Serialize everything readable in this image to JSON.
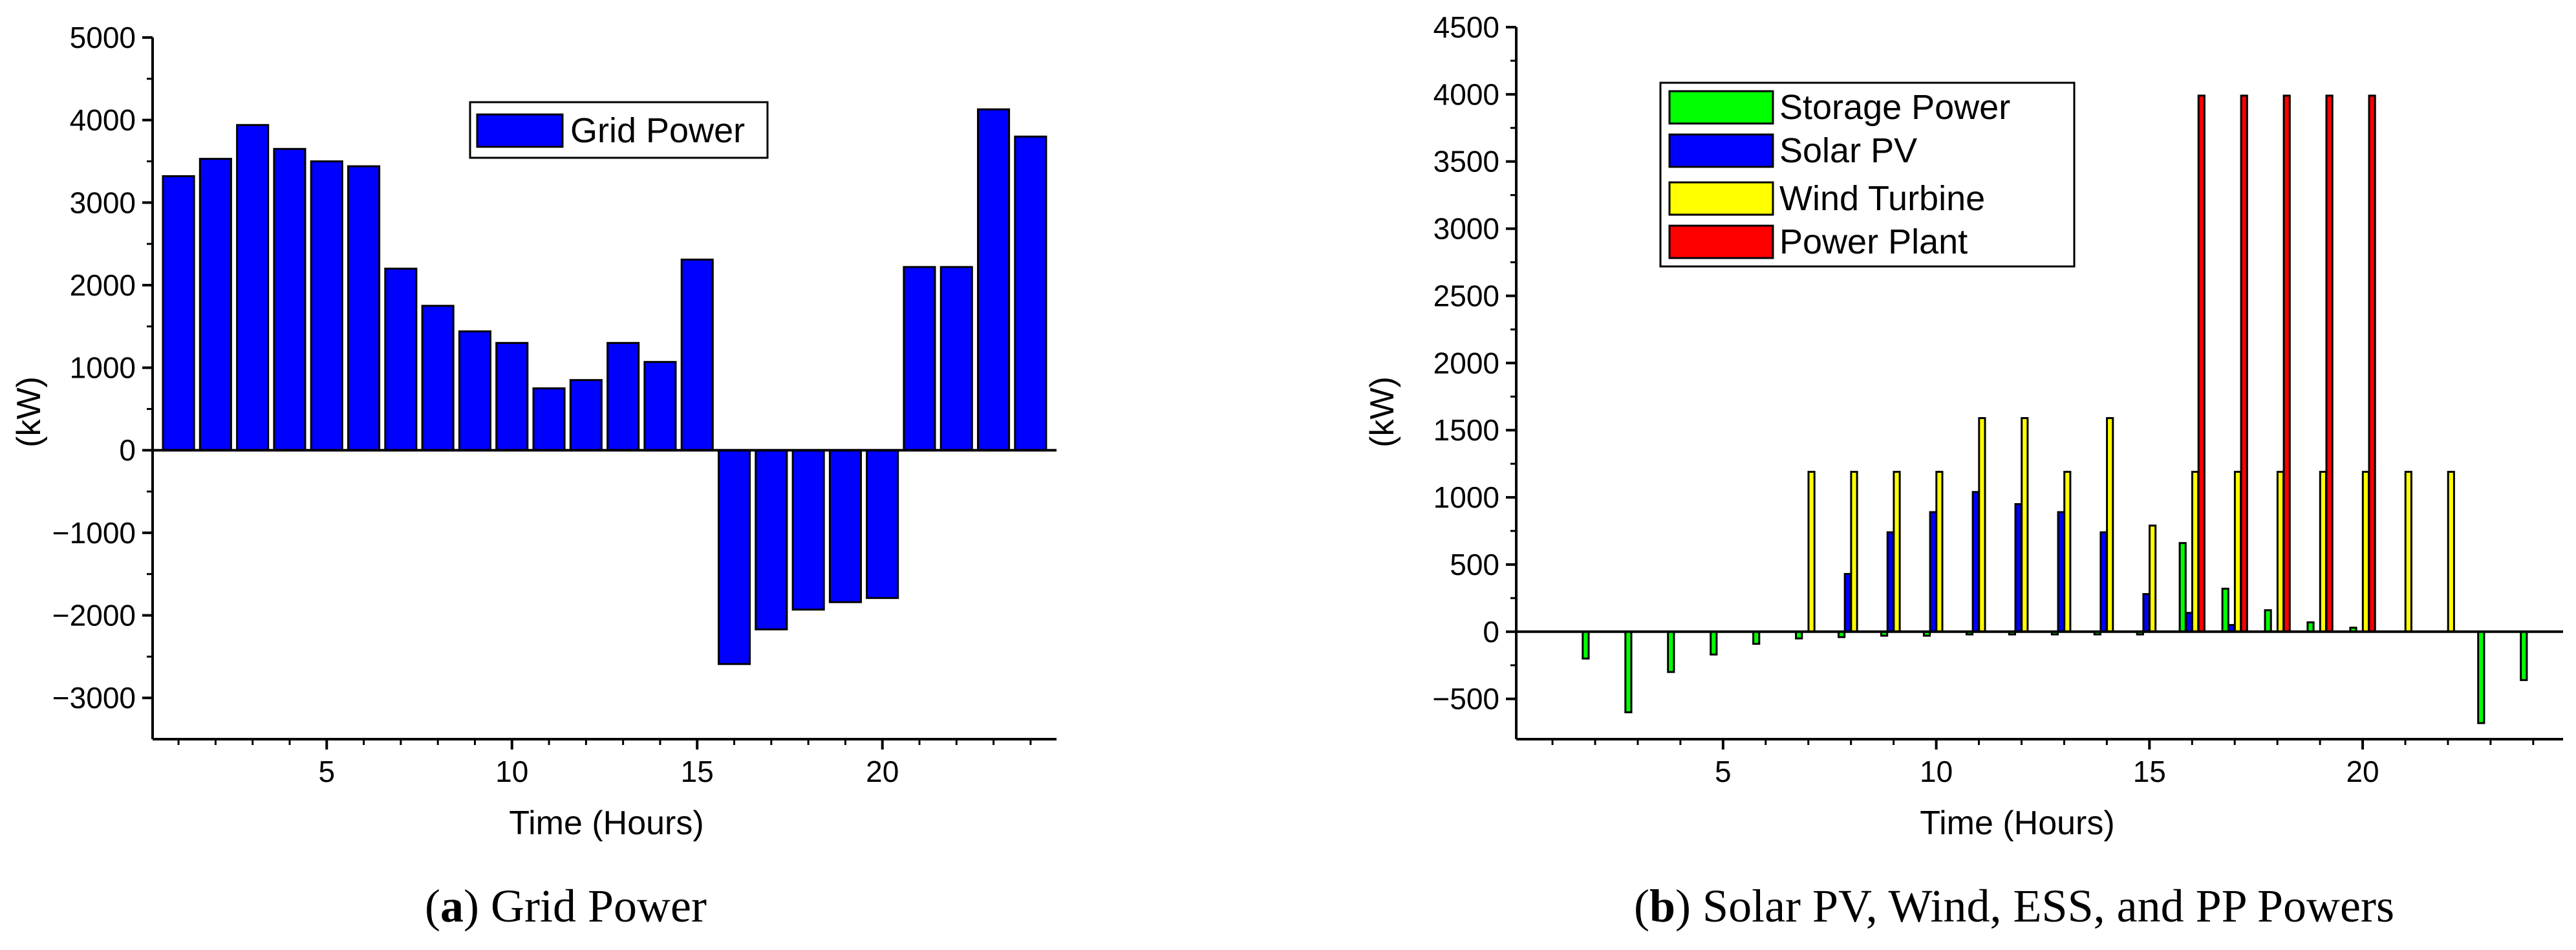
{
  "chart_data": [
    {
      "type": "bar",
      "panel": "a",
      "x": [
        1,
        2,
        3,
        4,
        5,
        6,
        7,
        8,
        9,
        10,
        11,
        12,
        13,
        14,
        15,
        16,
        17,
        18,
        19,
        20,
        21,
        22,
        23,
        24
      ],
      "series": [
        {
          "name": "Grid Power",
          "color": "#0000ff",
          "values": [
            3320,
            3530,
            3940,
            3650,
            3500,
            3440,
            2200,
            1750,
            1440,
            1300,
            750,
            850,
            1300,
            1070,
            2310,
            -2590,
            -2170,
            -1930,
            -1840,
            -1790,
            2220,
            2220,
            4130,
            3800
          ]
        }
      ],
      "xlabel": "Time (Hours)",
      "ylabel": "(kW)",
      "xticks": [
        5,
        10,
        15,
        20
      ],
      "yticks": [
        -3000,
        -2000,
        -1000,
        0,
        1000,
        2000,
        3000,
        4000,
        5000
      ],
      "xlim": [
        0.3,
        24.7
      ],
      "ylim": [
        -3500,
        5000
      ],
      "legend": "top-center",
      "caption_letter": "a",
      "caption_text": " Grid Power"
    },
    {
      "type": "bar",
      "panel": "b",
      "x": [
        1,
        2,
        3,
        4,
        5,
        6,
        7,
        8,
        9,
        10,
        11,
        12,
        13,
        14,
        15,
        16,
        17,
        18,
        19,
        20,
        21,
        22,
        23,
        24
      ],
      "series": [
        {
          "name": "Storage Power",
          "color": "#00ff00",
          "values": [
            0,
            -200,
            -600,
            -300,
            -170,
            -90,
            -50,
            -40,
            -30,
            -30,
            -20,
            -20,
            -20,
            -20,
            -20,
            660,
            320,
            160,
            70,
            30,
            0,
            0,
            -680,
            -360
          ]
        },
        {
          "name": "Solar PV",
          "color": "#0000ff",
          "values": [
            0,
            0,
            0,
            0,
            0,
            0,
            0,
            430,
            740,
            890,
            1040,
            950,
            890,
            740,
            280,
            140,
            50,
            0,
            0,
            0,
            0,
            0,
            0,
            0
          ]
        },
        {
          "name": "Wind Turbine",
          "color": "#ffff00",
          "values": [
            0,
            0,
            0,
            0,
            0,
            0,
            1190,
            1190,
            1190,
            1190,
            1590,
            1590,
            1190,
            1590,
            790,
            1190,
            1190,
            1190,
            1190,
            1190,
            1190,
            1190,
            0,
            0
          ]
        },
        {
          "name": "Power Plant",
          "color": "#ff0000",
          "values": [
            0,
            0,
            0,
            0,
            0,
            0,
            0,
            0,
            0,
            0,
            0,
            0,
            0,
            0,
            0,
            3990,
            3990,
            3990,
            3990,
            3990,
            0,
            0,
            0,
            0
          ]
        }
      ],
      "xlabel": "Time (Hours)",
      "ylabel": "(kW)",
      "xticks": [
        5,
        10,
        15,
        20
      ],
      "yticks": [
        -500,
        0,
        500,
        1000,
        1500,
        2000,
        2500,
        3000,
        3500,
        4000,
        4500
      ],
      "xlim": [
        0.15,
        24.7
      ],
      "ylim": [
        -800,
        4500
      ],
      "legend": "top-left",
      "caption_letter": "b",
      "caption_text": " Solar PV, Wind, ESS, and PP Powers"
    }
  ]
}
